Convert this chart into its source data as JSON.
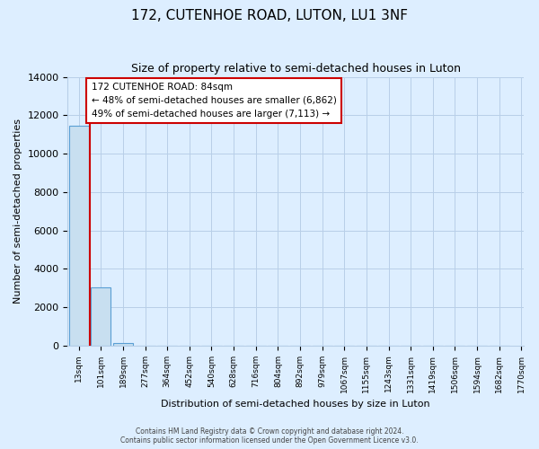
{
  "title": "172, CUTENHOE ROAD, LUTON, LU1 3NF",
  "subtitle": "Size of property relative to semi-detached houses in Luton",
  "xlabel": "Distribution of semi-detached houses by size in Luton",
  "ylabel": "Number of semi-detached properties",
  "bin_labels": [
    "13sqm",
    "101sqm",
    "189sqm",
    "277sqm",
    "364sqm",
    "452sqm",
    "540sqm",
    "628sqm",
    "716sqm",
    "804sqm",
    "892sqm",
    "979sqm",
    "1067sqm",
    "1155sqm",
    "1243sqm",
    "1331sqm",
    "1419sqm",
    "1506sqm",
    "1594sqm",
    "1682sqm"
  ],
  "bar_values": [
    11450,
    3020,
    140,
    0,
    0,
    0,
    0,
    0,
    0,
    0,
    0,
    0,
    0,
    0,
    0,
    0,
    0,
    0,
    0,
    0
  ],
  "bar_color": "#c8dff0",
  "bar_edge_color": "#5a9fd4",
  "annotation_title": "172 CUTENHOE ROAD: 84sqm",
  "annotation_line1": "← 48% of semi-detached houses are smaller (6,862)",
  "annotation_line2": "49% of semi-detached houses are larger (7,113) →",
  "annotation_box_color": "#ffffff",
  "annotation_box_edge_color": "#cc0000",
  "vline_color": "#cc0000",
  "vline_x": 0.5,
  "ylim": [
    0,
    14000
  ],
  "yticks": [
    0,
    2000,
    4000,
    6000,
    8000,
    10000,
    12000,
    14000
  ],
  "footer1": "Contains HM Land Registry data © Crown copyright and database right 2024.",
  "footer2": "Contains public sector information licensed under the Open Government Licence v3.0.",
  "background_color": "#ddeeff",
  "grid_color": "#b8cfe8",
  "extra_tick_label": "1770sqm"
}
